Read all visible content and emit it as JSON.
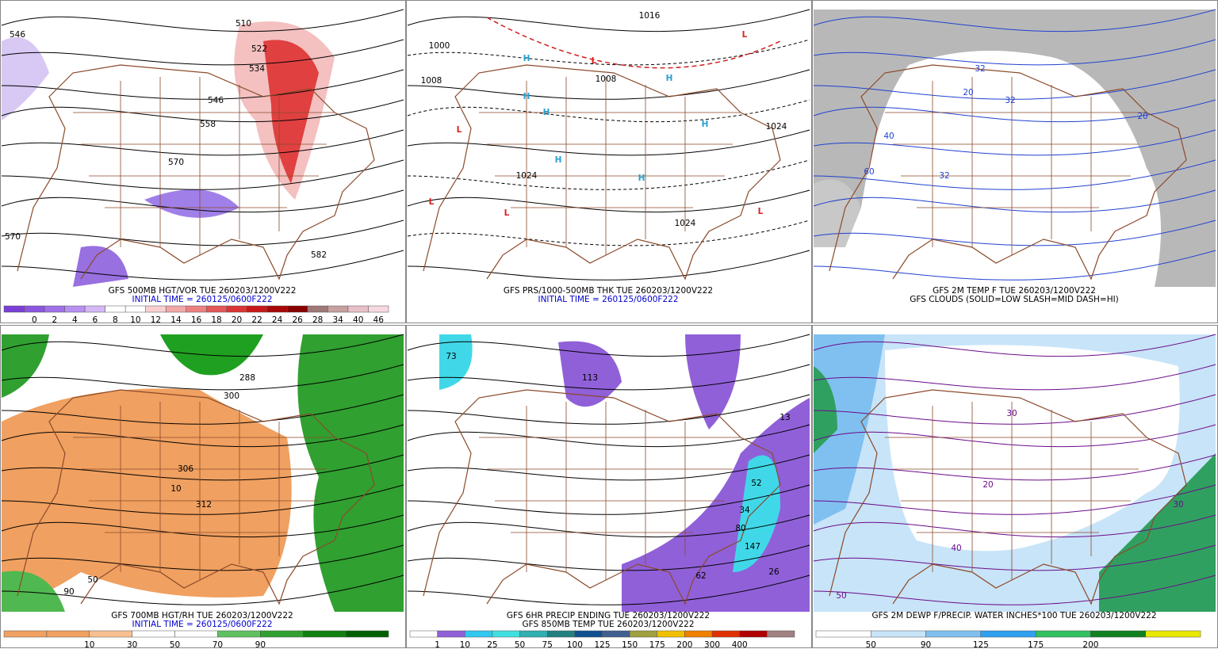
{
  "panels": [
    {
      "captions": [
        "GFS 500MB HGT/VOR TUE 260203/1200V222",
        "INITIAL TIME = 260125/0600F222"
      ],
      "caption_colors": [
        "#000000",
        "#0000cc"
      ],
      "colorbar_labels": [
        "0",
        "2",
        "4",
        "6",
        "8",
        "10",
        "12",
        "14",
        "16",
        "18",
        "20",
        "22",
        "24",
        "26",
        "28",
        "34",
        "40",
        "46"
      ],
      "colorbar_colors": [
        "#7a3fd6",
        "#8c55e0",
        "#a070e8",
        "#b890f0",
        "#d4b8f6",
        "#ffffff",
        "#ffffff",
        "#f8d0d0",
        "#f2a8a8",
        "#ec8080",
        "#e45858",
        "#dc3434",
        "#c81818",
        "#a80808",
        "#880000",
        "#a07878",
        "#c8a0a0",
        "#e8c0c8",
        "#f8d8e0"
      ],
      "map_labels": [
        "546",
        "510",
        "522",
        "534",
        "546",
        "558",
        "570",
        "570",
        "582"
      ]
    },
    {
      "captions": [
        "GFS PRS/1000-500MB THK TUE 260203/1200V222",
        "INITIAL TIME = 260125/0600F222"
      ],
      "caption_colors": [
        "#000000",
        "#0000cc"
      ],
      "map_labels": [
        "1000",
        "1008",
        "1016",
        "1008",
        "1024",
        "1024",
        "1024",
        "H",
        "H",
        "H",
        "H",
        "H",
        "H",
        "H",
        "L",
        "L",
        "L",
        "L",
        "L",
        "L"
      ]
    },
    {
      "captions": [
        "GFS 2M TEMP F TUE 260203/1200V222",
        "GFS CLOUDS (SOLID=LOW SLASH=MID DASH=HI)"
      ],
      "caption_colors": [
        "#000000",
        "#000000"
      ],
      "map_labels": [
        "32",
        "32",
        "32",
        "20",
        "20",
        "40",
        "60"
      ]
    },
    {
      "captions": [
        "GFS 700MB HGT/RH TUE 260203/1200V222",
        "INITIAL TIME = 260125/0600F222"
      ],
      "caption_colors": [
        "#000000",
        "#0000cc"
      ],
      "colorbar_labels": [
        "10",
        "30",
        "50",
        "70",
        "90"
      ],
      "colorbar_colors": [
        "#f0a060",
        "#f0a060",
        "#f8c090",
        "#ffffff",
        "#ffffff",
        "#60c060",
        "#30a030",
        "#108010",
        "#006000"
      ],
      "map_labels": [
        "288",
        "300",
        "306",
        "312",
        "50",
        "10",
        "90"
      ]
    },
    {
      "captions": [
        "GFS 6HR PRECIP ENDING TUE 260203/1200V222",
        "GFS 850MB TEMP TUE 260203/1200V222"
      ],
      "caption_colors": [
        "#000000",
        "#000000"
      ],
      "colorbar_labels": [
        "1",
        "10",
        "25",
        "50",
        "75",
        "100",
        "125",
        "150",
        "175",
        "200",
        "300",
        "400"
      ],
      "colorbar_colors": [
        "#ffffff",
        "#9060d8",
        "#30c8f0",
        "#40e0e0",
        "#30b0b0",
        "#208080",
        "#105090",
        "#406090",
        "#a0a040",
        "#f0c000",
        "#f08000",
        "#e03000",
        "#b00000",
        "#a08080"
      ],
      "map_labels": [
        "13",
        "52",
        "34",
        "80",
        "147",
        "62",
        "26",
        "113",
        "73"
      ]
    },
    {
      "captions": [
        "GFS 2M DEWP F/PRECIP. WATER INCHES*100 TUE 260203/1200V222"
      ],
      "caption_colors": [
        "#000000"
      ],
      "colorbar_labels": [
        "50",
        "90",
        "125",
        "175",
        "200"
      ],
      "colorbar_colors": [
        "#ffffff",
        "#c8e4f8",
        "#80c0f0",
        "#30a0f0",
        "#30c060",
        "#108020",
        "#e8e800"
      ],
      "map_labels": [
        "30",
        "30",
        "40",
        "20",
        "50"
      ]
    }
  ]
}
